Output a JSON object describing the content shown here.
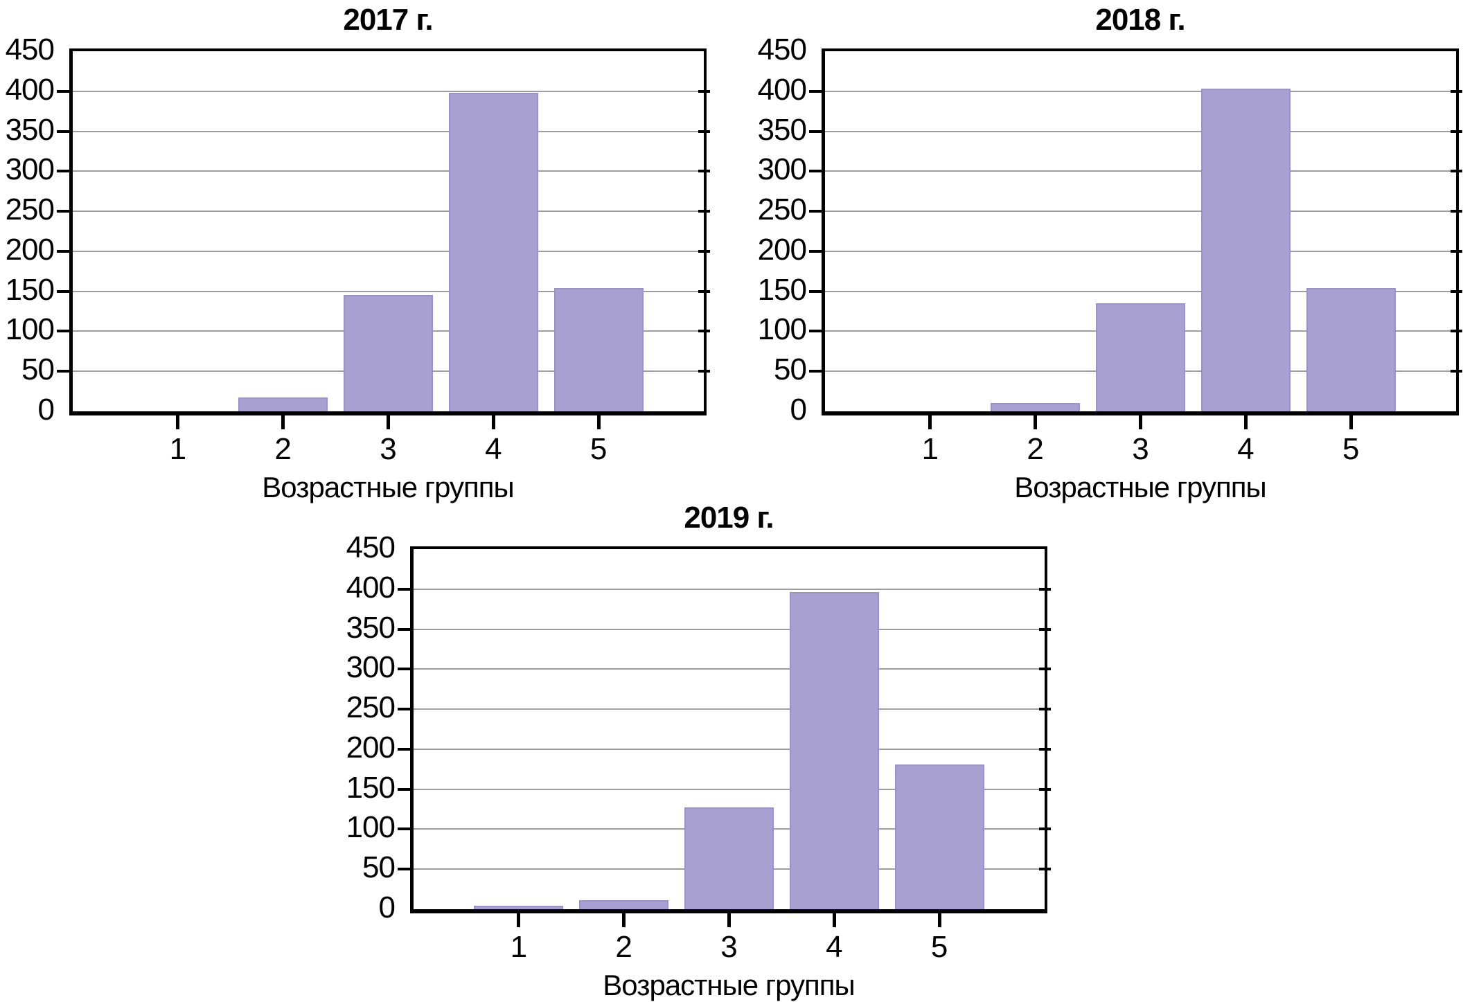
{
  "chart_data": [
    {
      "type": "bar",
      "title": "2017 г.",
      "xlabel": "Возрастные группы",
      "ylabel": "",
      "categories": [
        "1",
        "2",
        "3",
        "4",
        "5"
      ],
      "values": [
        0,
        17,
        145,
        398,
        154
      ],
      "ylim": [
        0,
        450
      ],
      "yticks": [
        0,
        50,
        100,
        150,
        200,
        250,
        300,
        350,
        400,
        450
      ],
      "grid": "horizontal",
      "legend": "none"
    },
    {
      "type": "bar",
      "title": "2018 г.",
      "xlabel": "Возрастные группы",
      "ylabel": "",
      "categories": [
        "1",
        "2",
        "3",
        "4",
        "5"
      ],
      "values": [
        0,
        10,
        135,
        403,
        154
      ],
      "ylim": [
        0,
        450
      ],
      "yticks": [
        0,
        50,
        100,
        150,
        200,
        250,
        300,
        350,
        400,
        450
      ],
      "grid": "horizontal",
      "legend": "none"
    },
    {
      "type": "bar",
      "title": "2019 г.",
      "xlabel": "Возрастные группы",
      "ylabel": "",
      "categories": [
        "1",
        "2",
        "3",
        "4",
        "5"
      ],
      "values": [
        4,
        11,
        127,
        396,
        181
      ],
      "ylim": [
        0,
        450
      ],
      "yticks": [
        0,
        50,
        100,
        150,
        200,
        250,
        300,
        350,
        400,
        450
      ],
      "grid": "horizontal",
      "legend": "none"
    }
  ],
  "colors": {
    "bar_fill": "#a8a0d0",
    "bar_edge": "#9a92c8",
    "gridline": "#9e9e9e",
    "axis": "#000000",
    "text": "#000000",
    "background": "#ffffff"
  }
}
